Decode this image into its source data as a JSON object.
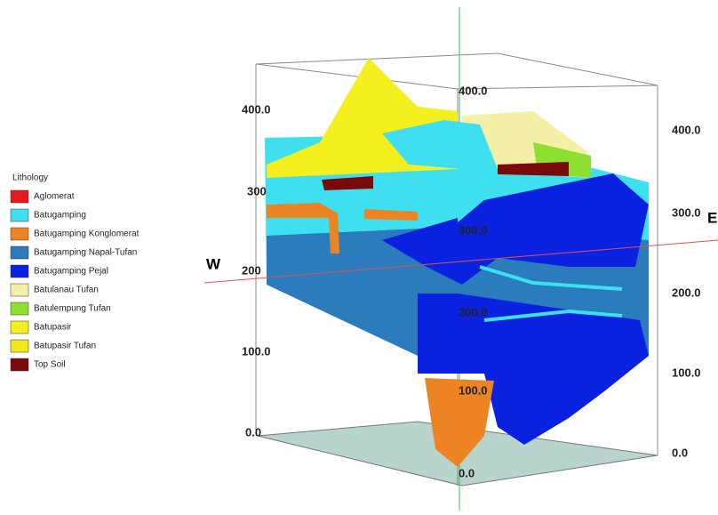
{
  "legend": {
    "title": "Lithology",
    "items": [
      {
        "label": "Aglomerat",
        "color": "#e41a1c"
      },
      {
        "label": "Batugamping",
        "color": "#3ee0f0"
      },
      {
        "label": "Batugamping Konglomerat",
        "color": "#ec8424"
      },
      {
        "label": "Batugamping Napal-Tufan",
        "color": "#2a7cbc"
      },
      {
        "label": "Batugamping Pejal",
        "color": "#0a22e0"
      },
      {
        "label": "Batulanau Tufan",
        "color": "#f4f0a8"
      },
      {
        "label": "Batulempung Tufan",
        "color": "#8ee030"
      },
      {
        "label": "Batupasir",
        "color": "#f4f020"
      },
      {
        "label": "Batupasir Tufan",
        "color": "#f0e818"
      },
      {
        "label": "Top Soil",
        "color": "#7a0a0a"
      }
    ]
  },
  "directions": {
    "west": "W",
    "east": "E"
  },
  "axes": {
    "left": [
      "400.0",
      "300",
      "200",
      "100.0",
      "0.0"
    ],
    "center": [
      "400.0",
      "300.0",
      "200.0",
      "100.0",
      "0.0"
    ],
    "right": [
      "400.0",
      "300.0",
      "200.0",
      "100.0",
      "0.0"
    ]
  }
}
